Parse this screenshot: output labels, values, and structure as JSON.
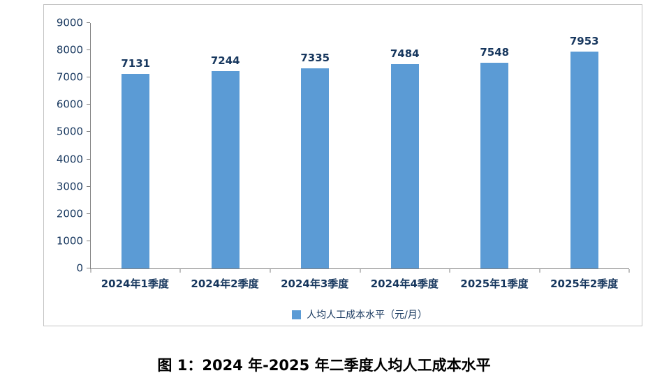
{
  "chart_data": {
    "type": "bar",
    "categories": [
      "2024年1季度",
      "2024年2季度",
      "2024年3季度",
      "2024年4季度",
      "2025年1季度",
      "2025年2季度"
    ],
    "values": [
      7131,
      7244,
      7335,
      7484,
      7548,
      7953
    ],
    "legend": "人均人工成本水平（元/月）",
    "title": "",
    "xlabel": "",
    "ylabel": "",
    "ylim": [
      0,
      9000
    ],
    "yticks": [
      0,
      1000,
      2000,
      3000,
      4000,
      5000,
      6000,
      7000,
      8000,
      9000
    ],
    "grid": false,
    "legend_position": "bottom",
    "bar_color": "#5B9BD5",
    "axis_color": "#808080",
    "label_color": "#17375E"
  },
  "caption": {
    "text": "图 1：2024 年-2025 年二季度人均人工成本水平"
  }
}
